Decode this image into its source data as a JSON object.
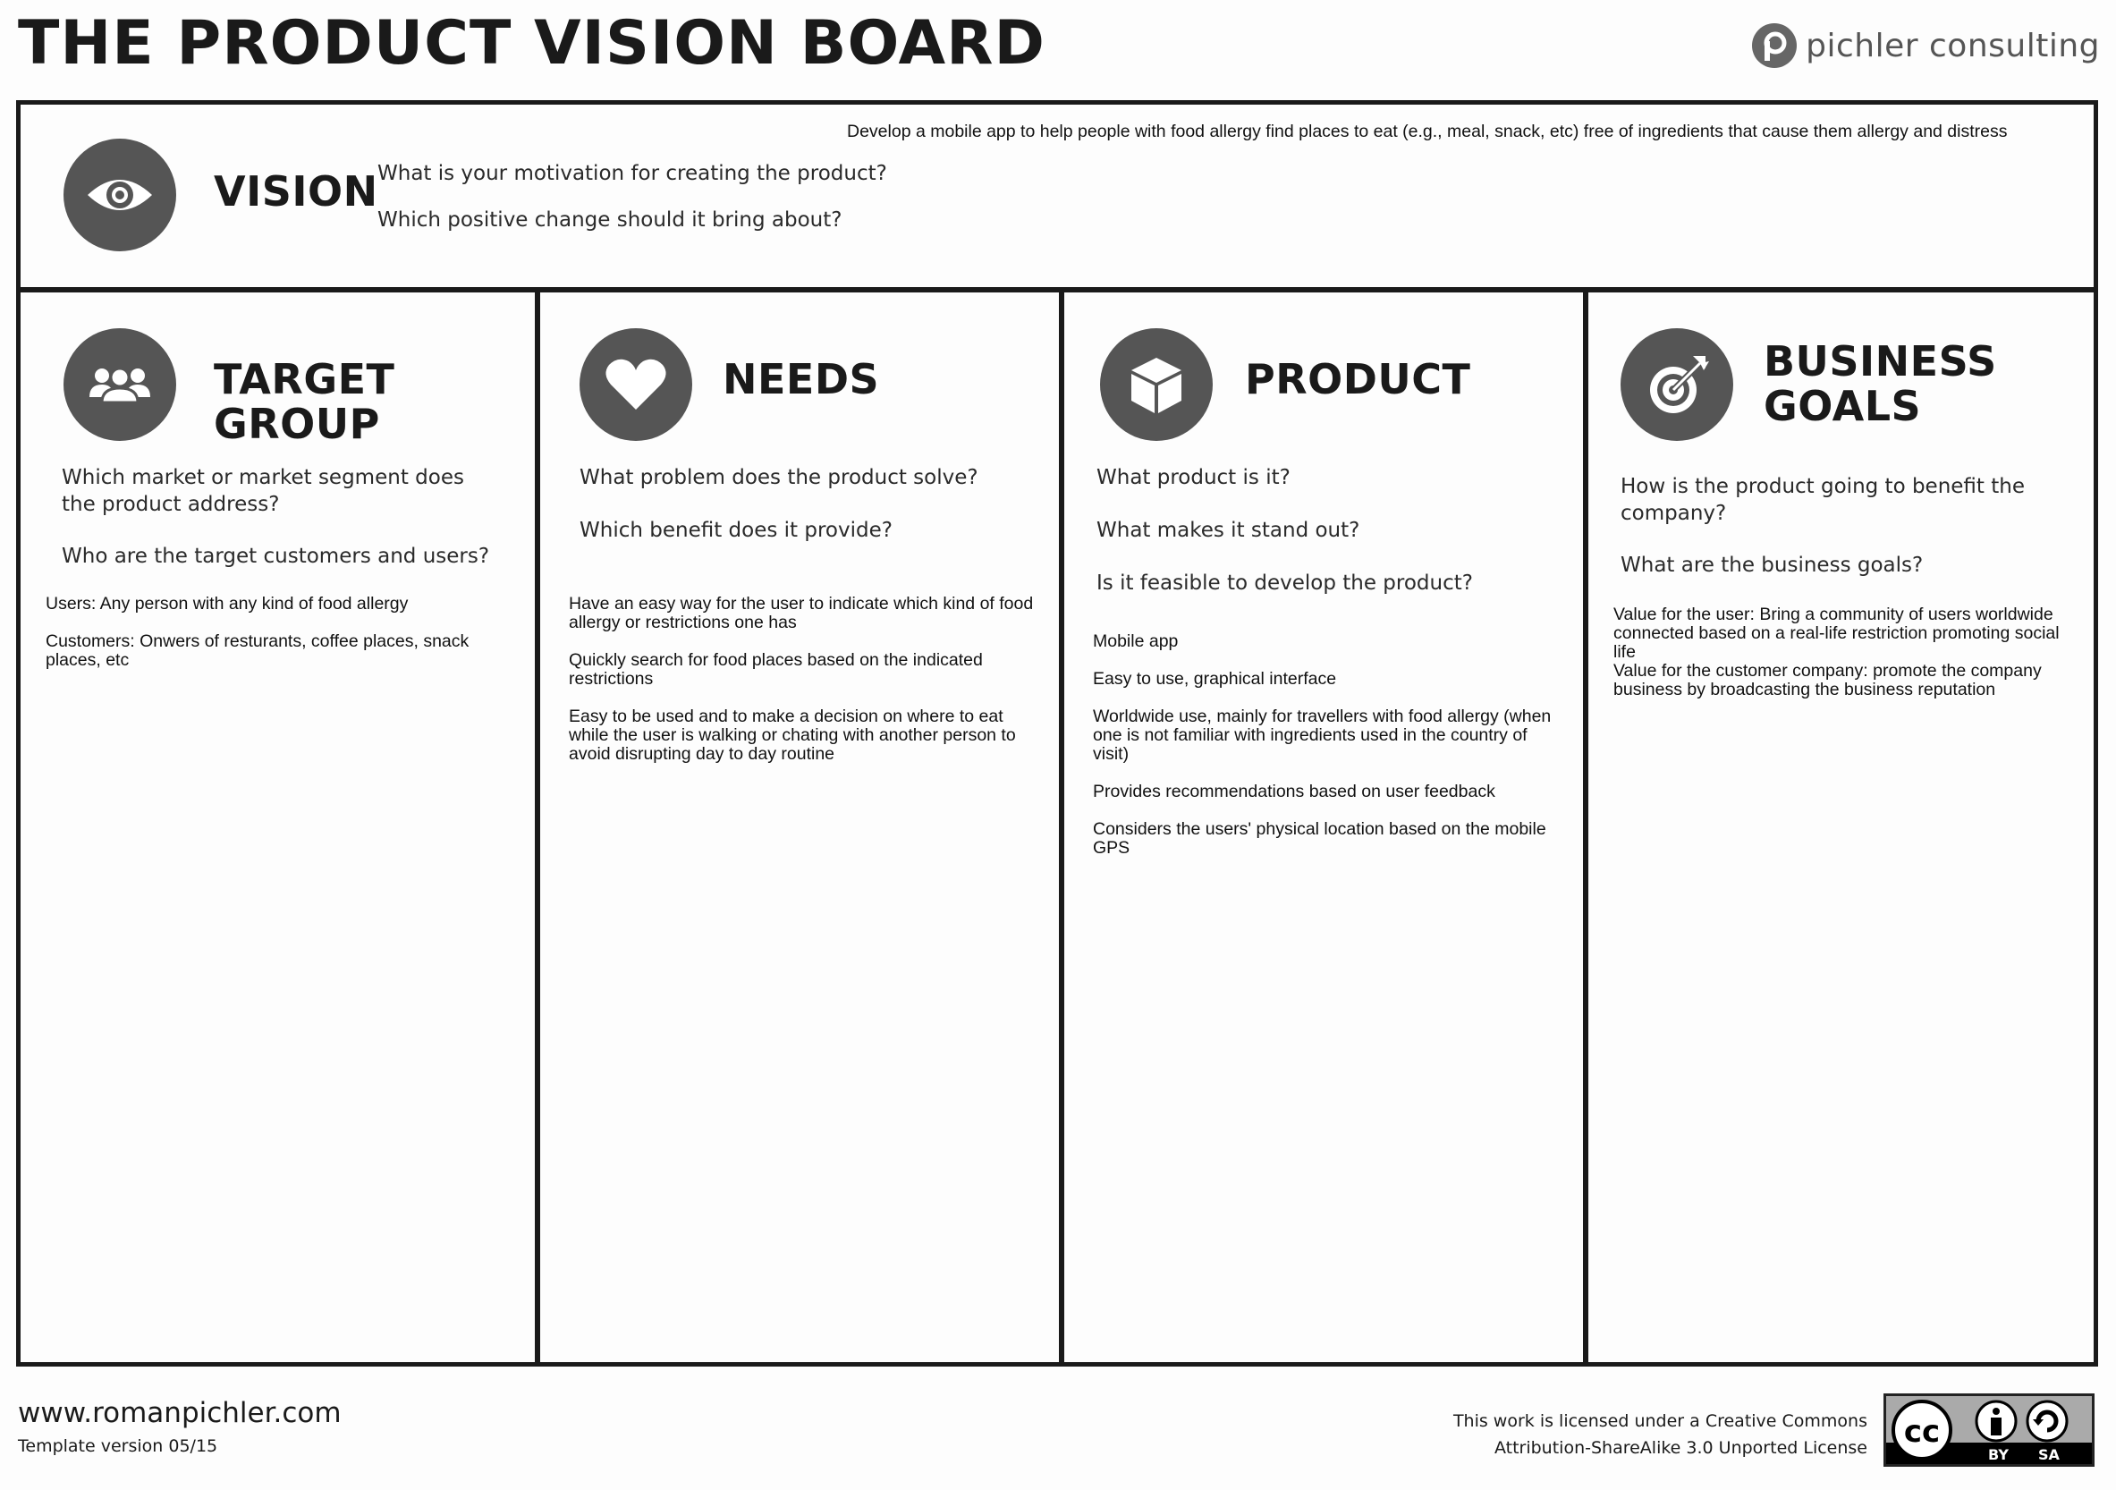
{
  "header": {
    "title": "THE PRODUCT VISION BOARD",
    "brand": "pichler consulting"
  },
  "vision": {
    "heading": "VISION",
    "prompts": [
      "What is your motivation for creating the product?",
      "Which positive change should it bring about?"
    ],
    "entry": "Develop a mobile app to help people with food allergy find places to eat (e.g., meal, snack, etc) free of ingredients that cause them allergy and distress"
  },
  "target_group": {
    "heading": "TARGET GROUP",
    "prompts": [
      "Which market or market segment does the product address?",
      "Who are the target customers and users?"
    ],
    "entries": [
      "Users: Any person with any kind of food allergy",
      "Customers: Onwers of resturants, coffee places, snack places, etc"
    ]
  },
  "needs": {
    "heading": "NEEDS",
    "prompts": [
      "What problem does the product solve?",
      "Which benefit does it provide?"
    ],
    "entries": [
      "Have an easy way for the user to indicate which kind of food allergy or restrictions one has",
      "Quickly search for food places based on the indicated restrictions",
      "Easy to be used and to make a decision on where to eat while the user is walking or chating with another person to avoid disrupting day to day routine"
    ]
  },
  "product": {
    "heading": "PRODUCT",
    "prompts": [
      "What product is it?",
      "What makes it stand out?",
      "Is it feasible to develop the product?"
    ],
    "entries": [
      "Mobile app",
      "Easy to use, graphical interface",
      "Worldwide use, mainly for travellers with food allergy (when one is not familiar with ingredients used in the country of visit)",
      "Provides recommendations based on user feedback",
      "Considers the users' physical location based on the mobile GPS"
    ]
  },
  "business_goals": {
    "heading_line1": "BUSINESS",
    "heading_line2": "GOALS",
    "prompts": [
      "How is the product going to benefit the company?",
      "What are the business goals?"
    ],
    "entries": [
      "Value for the user: Bring a community of users worldwide connected based on a real-life restriction promoting social life",
      "Value for the customer company: promote the company business by broadcasting the business reputation"
    ]
  },
  "footer": {
    "url": "www.romanpichler.com",
    "version": "Template version 05/15",
    "license_line1": "This work is licensed under a Creative Commons",
    "license_line2": "Attribution-ShareAlike 3.0 Unported License",
    "cc_label": "cc",
    "by_label": "BY",
    "sa_label": "SA"
  },
  "colors": {
    "icon_fill": "#555555",
    "border": "#1a1a1a",
    "background": "#fdfdfd"
  }
}
